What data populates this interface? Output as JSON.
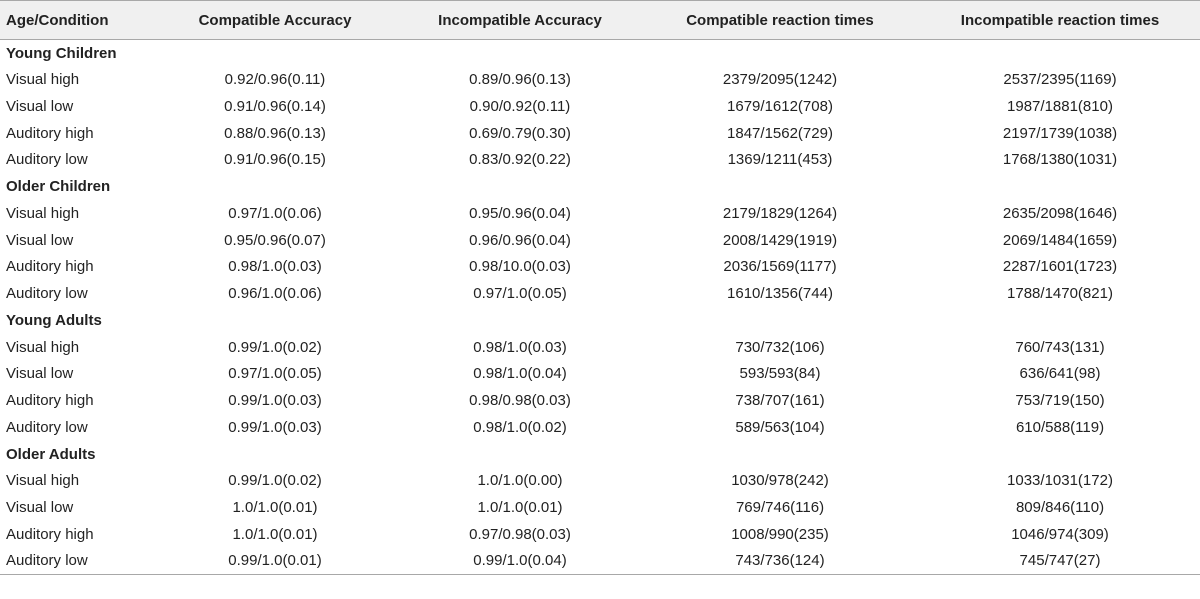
{
  "table": {
    "headers": [
      "Age/Condition",
      "Compatible Accuracy",
      "Incompatible Accuracy",
      "Compatible reaction times",
      "Incompatible reaction times"
    ],
    "groups": [
      {
        "name": "Young Children",
        "rows": [
          [
            "Visual high",
            "0.92/0.96(0.11)",
            "0.89/0.96(0.13)",
            "2379/2095(1242)",
            "2537/2395(1169)"
          ],
          [
            "Visual low",
            "0.91/0.96(0.14)",
            "0.90/0.92(0.11)",
            "1679/1612(708)",
            "1987/1881(810)"
          ],
          [
            "Auditory high",
            "0.88/0.96(0.13)",
            "0.69/0.79(0.30)",
            "1847/1562(729)",
            "2197/1739(1038)"
          ],
          [
            "Auditory low",
            "0.91/0.96(0.15)",
            "0.83/0.92(0.22)",
            "1369/1211(453)",
            "1768/1380(1031)"
          ]
        ]
      },
      {
        "name": "Older Children",
        "rows": [
          [
            "Visual high",
            "0.97/1.0(0.06)",
            "0.95/0.96(0.04)",
            "2179/1829(1264)",
            "2635/2098(1646)"
          ],
          [
            "Visual low",
            "0.95/0.96(0.07)",
            "0.96/0.96(0.04)",
            "2008/1429(1919)",
            "2069/1484(1659)"
          ],
          [
            "Auditory high",
            "0.98/1.0(0.03)",
            "0.98/10.0(0.03)",
            "2036/1569(1177)",
            "2287/1601(1723)"
          ],
          [
            "Auditory low",
            "0.96/1.0(0.06)",
            "0.97/1.0(0.05)",
            "1610/1356(744)",
            "1788/1470(821)"
          ]
        ]
      },
      {
        "name": "Young Adults",
        "rows": [
          [
            "Visual high",
            "0.99/1.0(0.02)",
            "0.98/1.0(0.03)",
            "730/732(106)",
            "760/743(131)"
          ],
          [
            "Visual low",
            "0.97/1.0(0.05)",
            "0.98/1.0(0.04)",
            "593/593(84)",
            "636/641(98)"
          ],
          [
            "Auditory high",
            "0.99/1.0(0.03)",
            "0.98/0.98(0.03)",
            "738/707(161)",
            "753/719(150)"
          ],
          [
            "Auditory low",
            "0.99/1.0(0.03)",
            "0.98/1.0(0.02)",
            "589/563(104)",
            "610/588(119)"
          ]
        ]
      },
      {
        "name": "Older Adults",
        "rows": [
          [
            "Visual high",
            "0.99/1.0(0.02)",
            "1.0/1.0(0.00)",
            "1030/978(242)",
            "1033/1031(172)"
          ],
          [
            "Visual low",
            "1.0/1.0(0.01)",
            "1.0/1.0(0.01)",
            "769/746(116)",
            "809/846(110)"
          ],
          [
            "Auditory high",
            "1.0/1.0(0.01)",
            "0.97/0.98(0.03)",
            "1008/990(235)",
            "1046/974(309)"
          ],
          [
            "Auditory low",
            "0.99/1.0(0.01)",
            "0.99/1.0(0.04)",
            "743/736(124)",
            "745/747(27)"
          ]
        ]
      }
    ]
  }
}
